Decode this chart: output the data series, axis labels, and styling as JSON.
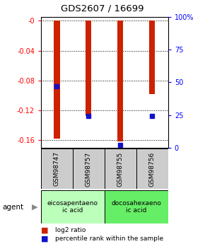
{
  "title": "GDS2607 / 16699",
  "samples": [
    "GSM98747",
    "GSM98757",
    "GSM98755",
    "GSM98756"
  ],
  "log2_ratios": [
    -0.158,
    -0.128,
    -0.162,
    -0.098
  ],
  "percentile_ranks": [
    47,
    24,
    2,
    24
  ],
  "agents": [
    "eicosapentaeno\nic acid",
    "docosahexaeno\nic acid"
  ],
  "ylim_left": [
    -0.17,
    0.005
  ],
  "ylim_right": [
    -1.7,
    0.5
  ],
  "yticks_left": [
    -0.16,
    -0.12,
    -0.08,
    -0.04,
    0.0
  ],
  "yticks_right": [
    0,
    25,
    50,
    75,
    100
  ],
  "ytick_labels_left": [
    "-0.16",
    "-0.12",
    "-0.08",
    "-0.04",
    "-0"
  ],
  "ytick_labels_right": [
    "0",
    "25",
    "50",
    "75",
    "100%"
  ],
  "bar_color": "#cc2200",
  "dot_color": "#1111cc",
  "sample_bg_color": "#cccccc",
  "agent1_bg_color": "#bbffbb",
  "agent2_bg_color": "#66ee66",
  "legend_bar_label": "log2 ratio",
  "legend_dot_label": "percentile rank within the sample",
  "agent_label": "agent"
}
